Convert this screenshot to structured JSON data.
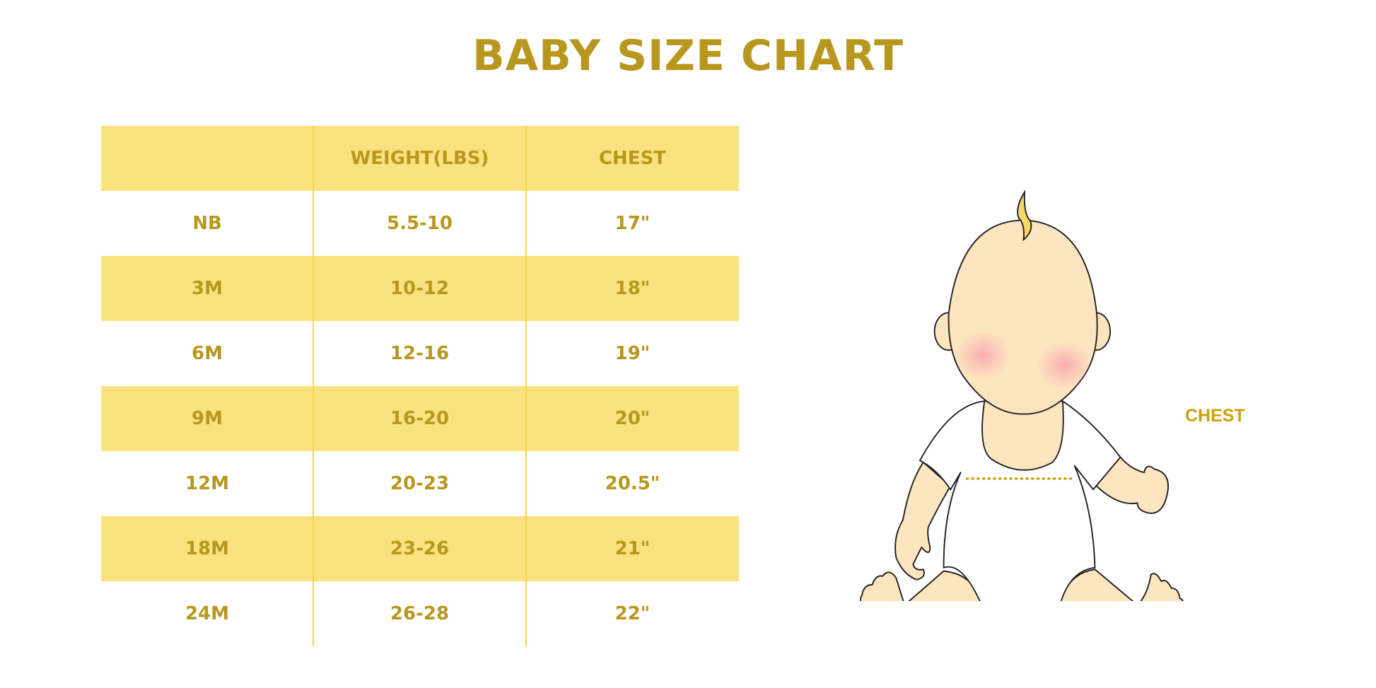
{
  "title": "BABY SIZE CHART",
  "table": {
    "headers": [
      "",
      "WEIGHT(LBS)",
      "CHEST"
    ],
    "rows": [
      [
        "NB",
        "5.5-10",
        "17\""
      ],
      [
        "3M",
        "10-12",
        "18\""
      ],
      [
        "6M",
        "12-16",
        "19\""
      ],
      [
        "9M",
        "16-20",
        "20\""
      ],
      [
        "12M",
        "20-23",
        "20.5\""
      ],
      [
        "18M",
        "23-26",
        "21\""
      ],
      [
        "24M",
        "26-28",
        "22\""
      ]
    ]
  },
  "illustration": {
    "chest_label": "CHEST"
  },
  "colors": {
    "accent_text": "#B8971F",
    "row_fill": "#FAE37E",
    "divider": "#F7D44C"
  }
}
